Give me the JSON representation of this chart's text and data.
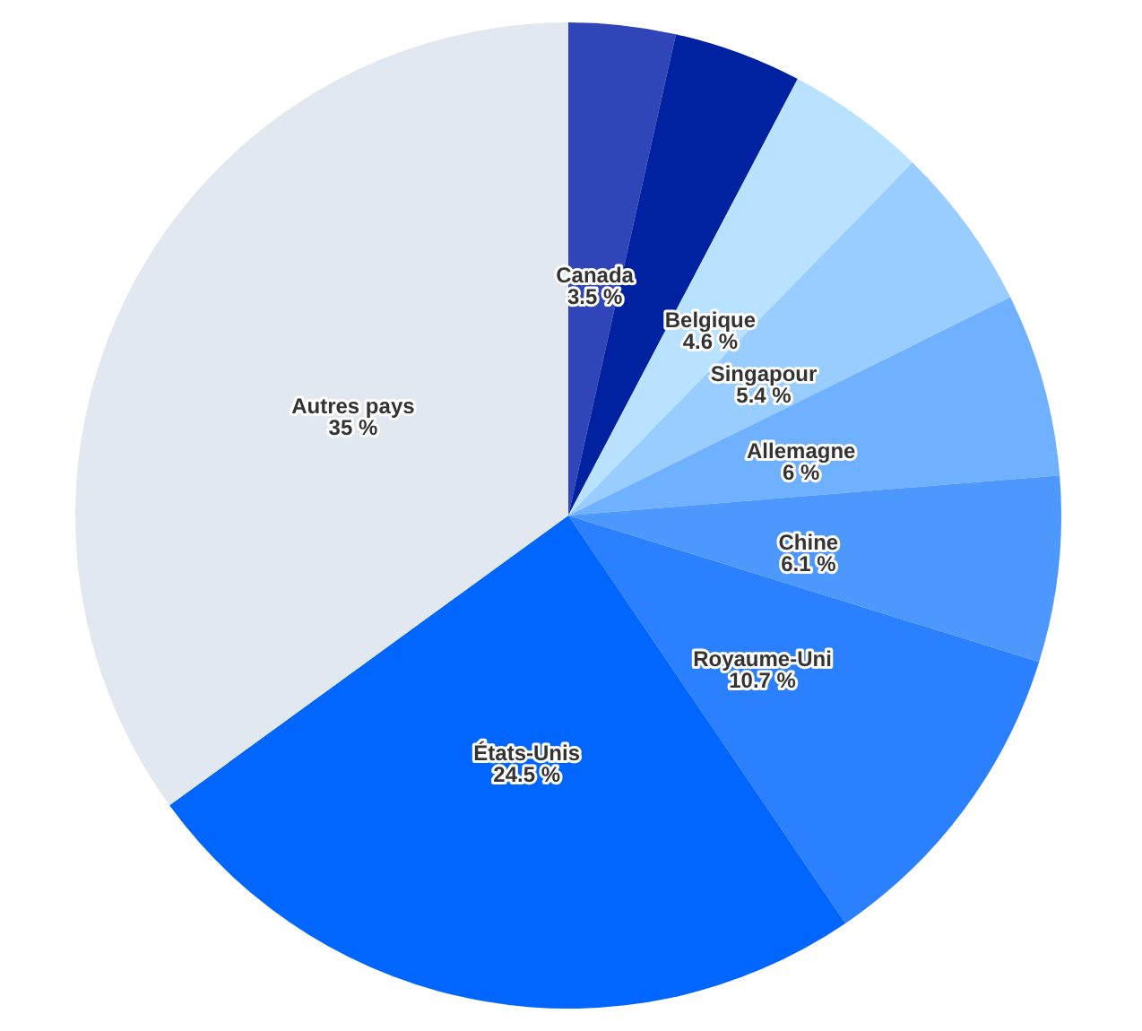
{
  "chart_data": {
    "type": "pie",
    "categories": [
      "Canada",
      null,
      "Belgique",
      "Singapour",
      "Allemagne",
      "Chine",
      "Royaume-Uni",
      "États-Unis",
      "Autres pays"
    ],
    "values": [
      3.5,
      4.2,
      4.6,
      5.4,
      6,
      6.1,
      10.7,
      24.5,
      35
    ],
    "value_labels": [
      "3.5 %",
      null,
      "4.6 %",
      "5.4 %",
      "6 %",
      "6.1 %",
      "10.7 %",
      "24.5 %",
      "35 %"
    ],
    "colors": [
      "#2f45b8",
      "#0022a0",
      "#b8e2ff",
      "#99ccff",
      "#70b1ff",
      "#4d98ff",
      "#2a80ff",
      "#0066ff",
      "#e2e8f0"
    ],
    "legend": false
  }
}
